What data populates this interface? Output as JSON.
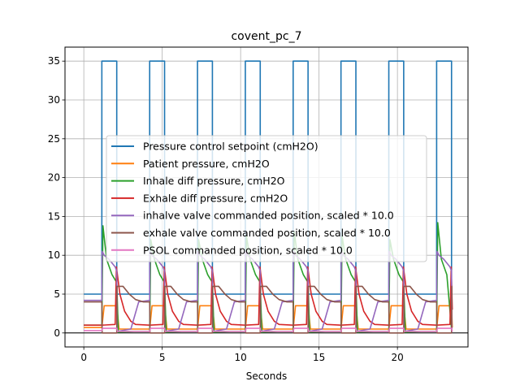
{
  "chart_data": {
    "type": "line",
    "title": "covent_pc_7",
    "xlabel": "Seconds",
    "ylabel": "",
    "xlim": [
      -1.2,
      24.5
    ],
    "ylim": [
      -1.8,
      36.8
    ],
    "xticks": [
      0,
      5,
      10,
      15,
      20
    ],
    "yticks": [
      0,
      5,
      10,
      15,
      20,
      25,
      30,
      35
    ],
    "grid": true,
    "legend_position": "center-right",
    "reference_line_y": 0,
    "breath_period": 3.05,
    "breath_count": 8,
    "breath_starts": [
      1.15,
      4.2,
      7.25,
      10.3,
      13.35,
      16.4,
      19.45,
      22.5
    ],
    "series": [
      {
        "name": "Pressure control setpoint (cmH2O)",
        "color": "#1f77b4",
        "x": [
          0,
          1.15,
          1.15,
          2.1,
          2.1,
          4.2,
          4.2,
          5.15,
          5.15,
          7.25,
          7.25,
          8.2,
          8.2,
          10.3,
          10.3,
          11.25,
          11.25,
          13.35,
          13.35,
          14.3,
          14.3,
          16.4,
          16.4,
          17.35,
          17.35,
          19.45,
          19.45,
          20.4,
          20.4,
          22.5,
          22.5,
          23.45,
          23.45
        ],
        "y": [
          5,
          5,
          35,
          35,
          5,
          5,
          35,
          35,
          5,
          5,
          35,
          35,
          5,
          5,
          35,
          35,
          5,
          5,
          35,
          35,
          5,
          5,
          35,
          35,
          5,
          5,
          35,
          35,
          5,
          5,
          35,
          35,
          5
        ]
      },
      {
        "name": "Patient pressure, cmH2O",
        "color": "#ff7f0e",
        "x": [
          0,
          1.15,
          1.3,
          2.1,
          2.25,
          4.2,
          4.35,
          5.15,
          5.3,
          7.25,
          7.4,
          8.2,
          8.35,
          10.3,
          10.45,
          11.25,
          11.4,
          13.35,
          13.5,
          14.3,
          14.45,
          16.4,
          16.55,
          17.35,
          17.5,
          19.45,
          19.6,
          20.4,
          20.55,
          22.5,
          22.65,
          23.45,
          23.5
        ],
        "y": [
          0.7,
          0.7,
          3.5,
          3.5,
          0.5,
          0.5,
          3.5,
          3.5,
          0.5,
          0.5,
          3.5,
          3.5,
          0.5,
          0.5,
          3.5,
          3.5,
          0.5,
          0.5,
          3.5,
          3.5,
          0.5,
          0.5,
          3.5,
          3.5,
          0.5,
          0.5,
          3.5,
          3.5,
          0.5,
          0.5,
          3.5,
          3.5,
          0.7
        ]
      },
      {
        "name": "Inhale diff pressure, cmH2O",
        "color": "#2ca02c",
        "x": [
          0,
          1.15,
          1.22,
          1.45,
          1.8,
          2.1,
          2.2,
          3.2,
          4.2,
          4.27,
          4.5,
          4.85,
          5.15,
          5.25,
          6.25,
          7.25,
          7.32,
          7.55,
          7.9,
          8.2,
          8.3,
          9.3,
          10.3,
          10.37,
          10.6,
          10.95,
          11.25,
          11.35,
          12.35,
          13.35,
          13.42,
          13.65,
          14.0,
          14.3,
          14.4,
          15.4,
          16.4,
          16.47,
          16.7,
          17.05,
          17.35,
          17.45,
          18.45,
          19.45,
          19.52,
          19.75,
          20.1,
          20.4,
          20.5,
          21.5,
          22.5,
          22.57,
          22.8,
          23.15,
          23.45
        ],
        "y": [
          1.0,
          1.0,
          13.8,
          9.5,
          7.5,
          6.5,
          0.1,
          0.2,
          0.2,
          12.0,
          9.5,
          7.5,
          6.5,
          0.1,
          0.2,
          0.2,
          12.0,
          9.5,
          7.5,
          6.5,
          0.1,
          0.2,
          0.2,
          12.5,
          9.5,
          7.5,
          6.5,
          0.1,
          0.2,
          0.2,
          13.0,
          9.5,
          7.5,
          6.5,
          0.1,
          0.2,
          0.2,
          12.5,
          9.5,
          7.5,
          6.5,
          0.1,
          0.2,
          0.2,
          12.0,
          9.5,
          7.5,
          6.5,
          0.1,
          0.2,
          0.2,
          14.2,
          9.5,
          7.5,
          0.5
        ]
      },
      {
        "name": "Exhale diff pressure, cmH2O",
        "color": "#d62728",
        "x": [
          0,
          1.15,
          2.0,
          2.08,
          2.3,
          2.6,
          3.0,
          3.3,
          4.2,
          5.05,
          5.13,
          5.35,
          5.65,
          6.05,
          6.35,
          7.25,
          8.1,
          8.18,
          8.4,
          8.7,
          9.1,
          9.4,
          10.3,
          11.15,
          11.23,
          11.45,
          11.75,
          12.15,
          12.45,
          13.35,
          14.2,
          14.28,
          14.5,
          14.8,
          15.2,
          15.5,
          16.4,
          17.25,
          17.33,
          17.55,
          17.85,
          18.25,
          18.55,
          19.45,
          20.3,
          20.38,
          20.6,
          20.9,
          21.3,
          21.6,
          22.5,
          23.35,
          23.43,
          23.5
        ],
        "y": [
          1.0,
          1.0,
          1.1,
          8.5,
          5.0,
          2.8,
          1.5,
          1.1,
          1.0,
          1.1,
          8.5,
          5.0,
          2.8,
          1.5,
          1.1,
          1.0,
          1.1,
          8.5,
          5.0,
          2.8,
          1.5,
          1.1,
          1.0,
          1.1,
          8.5,
          5.0,
          2.8,
          1.5,
          1.1,
          1.0,
          1.1,
          8.5,
          5.0,
          2.8,
          1.5,
          1.1,
          1.0,
          1.1,
          8.5,
          5.0,
          2.8,
          1.5,
          1.1,
          1.0,
          1.1,
          8.5,
          5.0,
          2.8,
          1.5,
          1.1,
          1.0,
          1.1,
          8.5,
          3.0
        ]
      },
      {
        "name": "inhalve valve commanded position, scaled * 10.0",
        "color": "#9467bd",
        "x": [
          0,
          1.15,
          1.17,
          1.3,
          1.6,
          2.0,
          2.1,
          2.12,
          3.0,
          3.5,
          4.2,
          4.22,
          4.35,
          4.65,
          5.05,
          5.15,
          5.17,
          6.05,
          6.55,
          7.25,
          7.27,
          7.4,
          7.7,
          8.1,
          8.2,
          8.22,
          9.1,
          9.6,
          10.3,
          10.32,
          10.45,
          10.75,
          11.15,
          11.25,
          11.27,
          12.15,
          12.65,
          13.35,
          13.37,
          13.5,
          13.8,
          14.2,
          14.3,
          14.32,
          15.2,
          15.7,
          16.4,
          16.42,
          16.55,
          16.85,
          17.25,
          17.35,
          17.37,
          18.25,
          18.75,
          19.45,
          19.47,
          19.6,
          19.9,
          20.3,
          20.4,
          20.42,
          21.3,
          21.8,
          22.5,
          22.52,
          22.65,
          22.95,
          23.35,
          23.45,
          23.47,
          23.5
        ],
        "y": [
          4.2,
          4.2,
          10.5,
          10.0,
          9.5,
          8.5,
          8.0,
          0.2,
          0.5,
          4.0,
          4.2,
          10.5,
          10.0,
          9.5,
          8.5,
          8.0,
          0.2,
          0.5,
          4.0,
          4.2,
          10.5,
          10.0,
          9.5,
          8.5,
          8.0,
          0.2,
          0.5,
          4.0,
          4.2,
          10.5,
          10.0,
          9.5,
          8.5,
          8.0,
          0.2,
          0.5,
          4.0,
          4.2,
          10.5,
          10.0,
          9.5,
          8.5,
          8.0,
          0.2,
          0.5,
          4.0,
          4.2,
          10.5,
          10.0,
          9.5,
          8.5,
          8.0,
          0.2,
          0.5,
          4.0,
          4.2,
          10.5,
          10.0,
          9.5,
          8.5,
          8.0,
          0.2,
          0.5,
          4.0,
          4.2,
          10.5,
          10.0,
          9.5,
          8.5,
          8.0,
          0.2,
          0.2
        ]
      },
      {
        "name": "exhale valve commanded position, scaled * 10.0",
        "color": "#8c564b",
        "x": [
          0,
          1.15,
          1.17,
          2.1,
          2.12,
          2.5,
          2.9,
          3.3,
          3.8,
          4.2,
          4.22,
          5.15,
          5.17,
          5.55,
          5.95,
          6.35,
          6.85,
          7.25,
          7.27,
          8.2,
          8.22,
          8.6,
          9.0,
          9.4,
          9.9,
          10.3,
          10.32,
          11.25,
          11.27,
          11.65,
          12.05,
          12.45,
          12.95,
          13.35,
          13.37,
          14.3,
          14.32,
          14.7,
          15.1,
          15.5,
          16.0,
          16.4,
          16.42,
          17.35,
          17.37,
          17.75,
          18.15,
          18.55,
          19.05,
          19.45,
          19.47,
          20.4,
          20.42,
          20.8,
          21.2,
          21.6,
          22.1,
          22.5,
          22.52,
          23.45,
          23.47,
          23.5
        ],
        "y": [
          4.0,
          4.0,
          0.0,
          0.0,
          6.0,
          6.0,
          5.0,
          4.3,
          4.0,
          4.0,
          0.0,
          0.0,
          6.0,
          6.0,
          5.0,
          4.3,
          4.0,
          4.0,
          0.0,
          0.0,
          6.0,
          6.0,
          5.0,
          4.3,
          4.0,
          4.0,
          0.0,
          0.0,
          6.0,
          6.0,
          5.0,
          4.3,
          4.0,
          4.0,
          0.0,
          0.0,
          6.0,
          6.0,
          5.0,
          4.3,
          4.0,
          4.0,
          0.0,
          0.0,
          6.0,
          6.0,
          5.0,
          4.3,
          4.0,
          4.0,
          0.0,
          0.0,
          6.0,
          6.0,
          5.0,
          4.3,
          4.0,
          4.0,
          0.0,
          0.0,
          6.0,
          6.0
        ]
      },
      {
        "name": "PSOL commanded position, scaled * 10.0",
        "color": "#e377c2",
        "x": [
          0,
          1.15,
          1.2,
          2.1,
          2.15,
          4.2,
          4.25,
          5.15,
          5.2,
          7.25,
          7.3,
          8.2,
          8.25,
          10.3,
          10.35,
          11.25,
          11.3,
          13.35,
          13.4,
          14.3,
          14.35,
          16.4,
          16.45,
          17.35,
          17.4,
          19.45,
          19.5,
          20.4,
          20.45,
          22.5,
          22.55,
          23.45,
          23.5
        ],
        "y": [
          0.3,
          0.3,
          0.6,
          0.6,
          0.2,
          0.2,
          0.6,
          0.6,
          0.2,
          0.2,
          0.6,
          0.6,
          0.2,
          0.2,
          0.6,
          0.6,
          0.2,
          0.2,
          0.6,
          0.6,
          0.2,
          0.2,
          0.6,
          0.6,
          0.2,
          0.2,
          0.6,
          0.6,
          0.2,
          0.2,
          0.6,
          0.6,
          0.2
        ]
      }
    ]
  }
}
